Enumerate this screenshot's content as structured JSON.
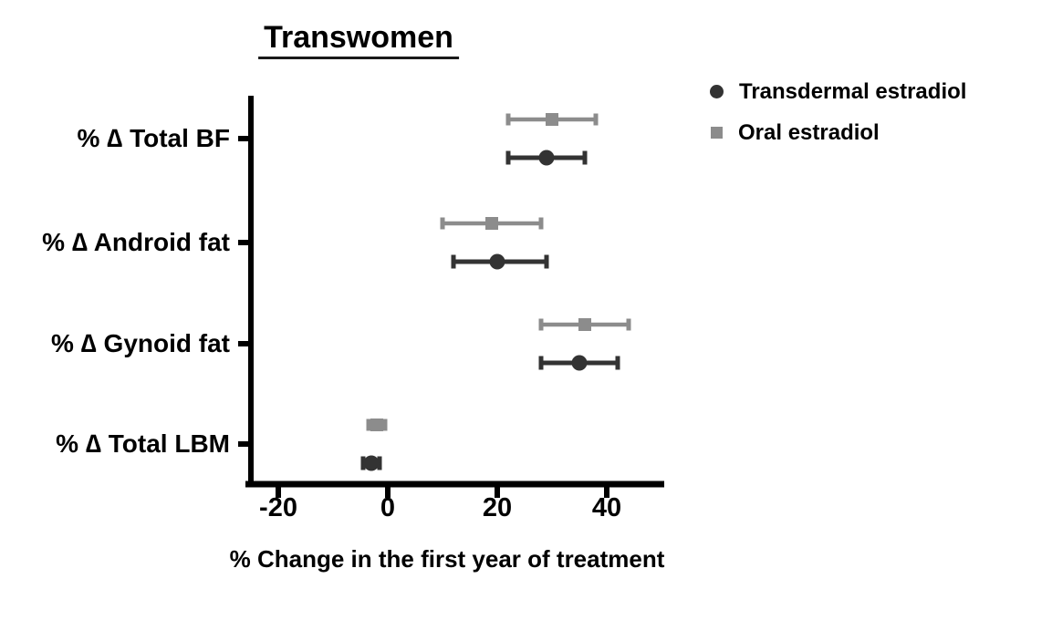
{
  "chart": {
    "title": "Transwomen"
  },
  "chart_data": {
    "type": "scatter",
    "subtype": "dot-and-error-bar (forest-style plot)",
    "title": "Transwomen",
    "xlabel": "% Change in the first year of treatment",
    "ylabel": "",
    "xlim": [
      -25,
      50
    ],
    "xticks": [
      -20,
      0,
      20,
      40
    ],
    "xtick_labels": [
      "-20",
      "0",
      "20",
      "40"
    ],
    "grid": false,
    "legend_position": "top-right",
    "axis_color": "#000000",
    "categories": [
      "% ∆ Total BF",
      "% ∆ Android fat",
      "% ∆ Gynoid fat",
      "% ∆ Total LBM"
    ],
    "series": [
      {
        "name": "Transdermal estradiol",
        "marker": "circle",
        "color": "#333333",
        "points": [
          {
            "category": "% ∆ Total BF",
            "mean": 29,
            "lo": 22,
            "hi": 36
          },
          {
            "category": "% ∆ Android fat",
            "mean": 20,
            "lo": 12,
            "hi": 29
          },
          {
            "category": "% ∆ Gynoid fat",
            "mean": 35,
            "lo": 28,
            "hi": 42
          },
          {
            "category": "% ∆ Total LBM",
            "mean": -3,
            "lo": -4.5,
            "hi": -1.5
          }
        ]
      },
      {
        "name": "Oral estradiol",
        "marker": "square",
        "color": "#8c8c8c",
        "points": [
          {
            "category": "% ∆ Total BF",
            "mean": 30,
            "lo": 22,
            "hi": 38
          },
          {
            "category": "% ∆ Android fat",
            "mean": 19,
            "lo": 10,
            "hi": 28
          },
          {
            "category": "% ∆ Gynoid fat",
            "mean": 36,
            "lo": 28,
            "hi": 44
          },
          {
            "category": "% ∆ Total LBM",
            "mean": -2,
            "lo": -3.5,
            "hi": -0.5
          }
        ]
      }
    ]
  }
}
